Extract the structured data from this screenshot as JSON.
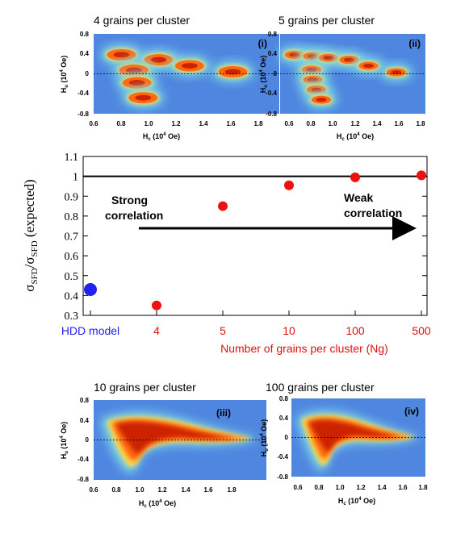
{
  "colors": {
    "panel_bg": "#4f86e0",
    "hot_core": "#cc2200",
    "warm": "#ff7a00",
    "hdd_point": "#2222ee",
    "grain_point": "#ee1111",
    "axis_text_red": "#dd1111",
    "axis_text_blue": "#2222ee"
  },
  "panels": [
    {
      "id": "i",
      "title": "4 grains per cluster",
      "tag": "(i)",
      "ylabel_main": "H",
      "ylabel_sub": "u",
      "ylabel_unit": " (10",
      "ylabel_exp": "4",
      "ylabel_tail": " Oe)",
      "xlabel_main": "H",
      "xlabel_sub": "c",
      "xlabel_unit": " (10",
      "xlabel_exp": "4",
      "xlabel_tail": " Oe)",
      "xticks": [
        "0.6",
        "0.8",
        "1.0",
        "1.2",
        "1.4",
        "1.6",
        "1.8"
      ],
      "yticks": [
        "0.8",
        "0.4",
        "0",
        "-0.4",
        "-0.8"
      ],
      "xlim": [
        0.6,
        1.8
      ],
      "ylim": [
        -0.8,
        0.8
      ],
      "peaks": [
        [
          0.78,
          0.38
        ],
        [
          1.02,
          0.28
        ],
        [
          1.22,
          0.16
        ],
        [
          1.5,
          0.04
        ],
        [
          0.86,
          0.07
        ],
        [
          0.88,
          -0.18
        ],
        [
          0.92,
          -0.48
        ]
      ]
    },
    {
      "id": "ii",
      "title": "5 grains per cluster",
      "tag": "(ii)",
      "ylabel_main": "H",
      "ylabel_sub": "u",
      "ylabel_unit": " (10",
      "ylabel_exp": "4",
      "ylabel_tail": " Oe)",
      "xlabel_main": "H",
      "xlabel_sub": "c",
      "xlabel_unit": " (10",
      "xlabel_exp": "4",
      "xlabel_tail": " Oe)",
      "xticks": [
        "0.6",
        "0.8",
        "1.0",
        "1.2",
        "1.4",
        "1.6",
        "1.8"
      ],
      "yticks": [
        "0.8",
        "0.4",
        "0",
        "-0.4",
        "-0.8"
      ],
      "xlim": [
        0.6,
        1.8
      ],
      "ylim": [
        -0.8,
        0.8
      ],
      "peaks": [
        [
          0.72,
          0.38
        ],
        [
          0.87,
          0.35
        ],
        [
          1.0,
          0.32
        ],
        [
          1.17,
          0.28
        ],
        [
          1.33,
          0.16
        ],
        [
          1.56,
          0.03
        ],
        [
          0.86,
          0.08
        ],
        [
          0.87,
          -0.12
        ],
        [
          0.9,
          -0.32
        ],
        [
          0.94,
          -0.52
        ]
      ]
    },
    {
      "id": "iii",
      "title": "10 grains per cluster",
      "tag": "(iii)",
      "ylabel_main": "H",
      "ylabel_sub": "u",
      "ylabel_unit": " (10",
      "ylabel_exp": "4",
      "ylabel_tail": " Oe)",
      "xlabel_main": "H",
      "xlabel_sub": "c",
      "xlabel_unit": " (10",
      "xlabel_exp": "4",
      "xlabel_tail": " Oe)",
      "xticks": [
        "0.6",
        "0.8",
        "1.0",
        "1.2",
        "1.4",
        "1.6",
        "1.8"
      ],
      "yticks": [
        "0.8",
        "0.4",
        "0",
        "-0.4",
        "-0.8"
      ],
      "xlim": [
        0.6,
        1.8
      ],
      "ylim": [
        -0.8,
        0.8
      ]
    },
    {
      "id": "iv",
      "title": "100 grains per cluster",
      "tag": "(iv)",
      "ylabel_main": "H",
      "ylabel_sub": "u",
      "ylabel_unit": " (10",
      "ylabel_exp": "4",
      "ylabel_tail": " Oe)",
      "xlabel_main": "H",
      "xlabel_sub": "c",
      "xlabel_unit": " (10",
      "xlabel_exp": "4",
      "xlabel_tail": " Oe)",
      "xticks": [
        "0.6",
        "0.8",
        "1.0",
        "1.2",
        "1.4",
        "1.6",
        "1.8"
      ],
      "yticks": [
        "0.8",
        "0.4",
        "0",
        "-0.4",
        "-0.8"
      ],
      "xlim": [
        0.6,
        1.8
      ],
      "ylim": [
        -0.8,
        0.8
      ]
    }
  ],
  "main": {
    "ylabel_sigma": "σ",
    "ylabel_sub": "SFD",
    "ylabel_slash": "/σ",
    "ylabel_sub2": "SFD",
    "ylabel_tail": " (expected)",
    "xlabel": "Number of grains per cluster (Ng)",
    "annotation_left": [
      "Strong",
      "correlation"
    ],
    "annotation_right": [
      "Weak",
      "correlation"
    ]
  },
  "chart_data": {
    "type": "scatter",
    "categories": [
      "HDD model",
      "4",
      "5",
      "10",
      "100",
      "500"
    ],
    "ylim": [
      0.3,
      1.1
    ],
    "yticks": [
      "0.3",
      "0.4",
      "0.5",
      "0.6",
      "0.7",
      "0.8",
      "0.9",
      "1",
      "1.1"
    ],
    "reference_line": 1.0,
    "series": [
      {
        "values": [
          0.43,
          null,
          null,
          null,
          null,
          null
        ]
      },
      {
        "values": [
          null,
          0.35,
          0.85,
          0.955,
          0.995,
          1.005
        ]
      }
    ]
  }
}
